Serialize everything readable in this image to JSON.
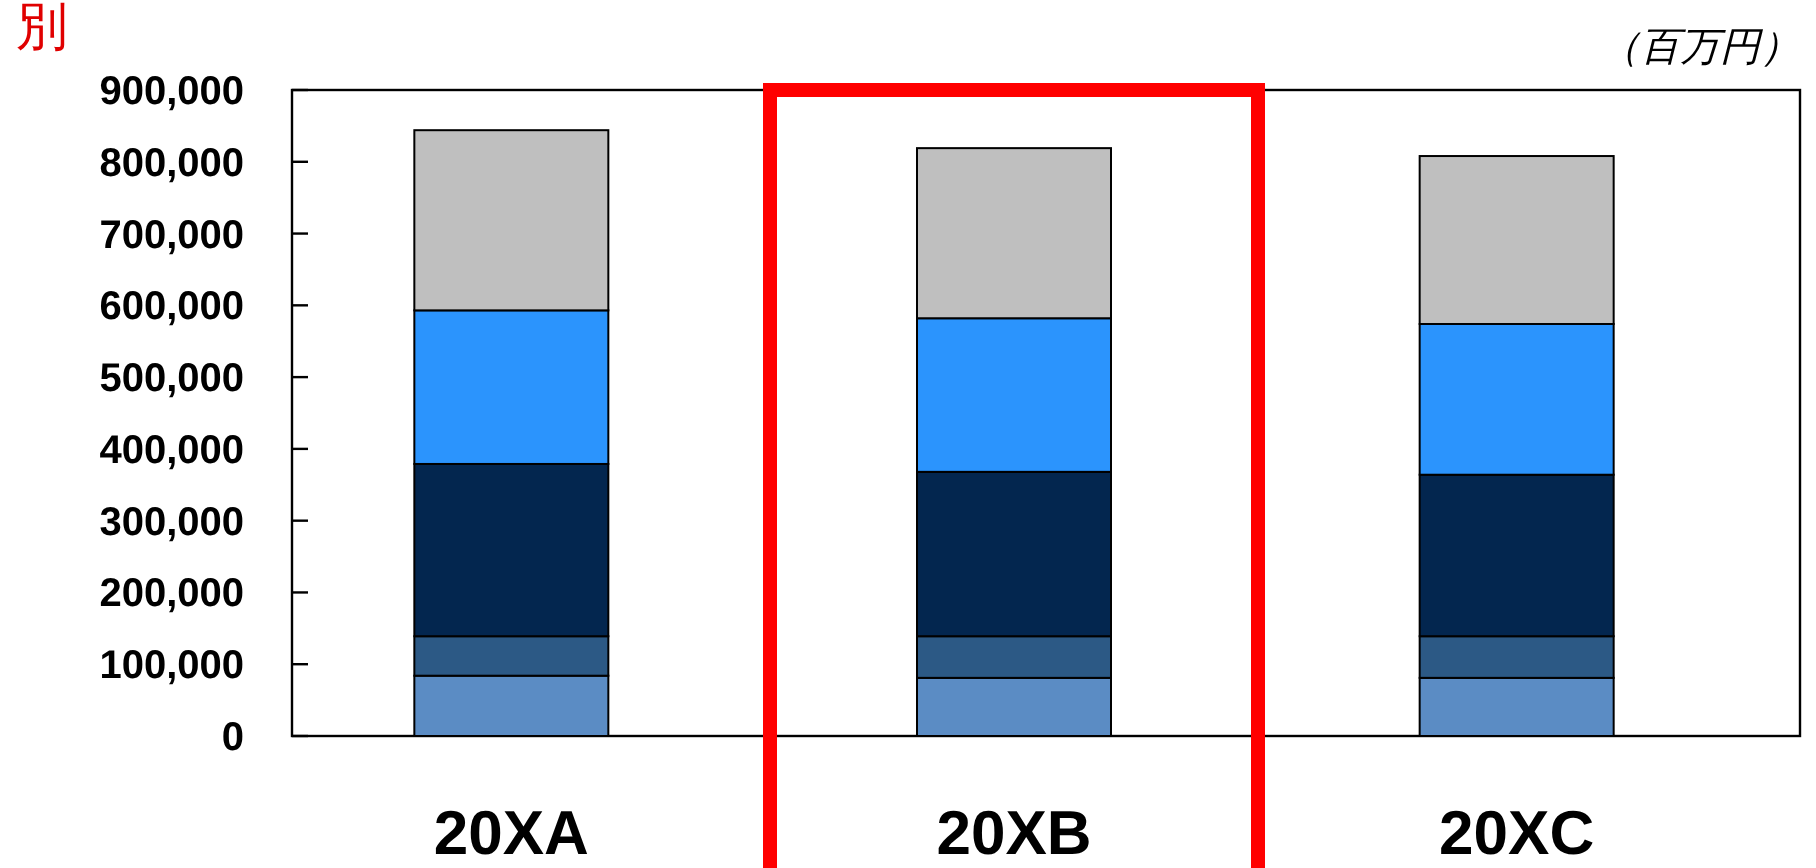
{
  "chart_data": {
    "type": "bar",
    "title": "別",
    "ylabel": "（百万円）",
    "stacked": true,
    "categories": [
      "20XA",
      "20XB",
      "20XC"
    ],
    "series": [
      {
        "color": "#5b8cc4",
        "values": [
          84000,
          81000,
          81000
        ]
      },
      {
        "color": "#2c5985",
        "values": [
          55000,
          58000,
          58000
        ]
      },
      {
        "color": "#03264f",
        "values": [
          240000,
          229000,
          225000
        ]
      },
      {
        "color": "#2b94fd",
        "values": [
          214000,
          214000,
          210000
        ]
      },
      {
        "color": "#bfbfbf",
        "values": [
          251000,
          237000,
          234000
        ]
      }
    ],
    "ylim": [
      0,
      900000
    ],
    "yticks": [
      {
        "value": 0,
        "label": "0"
      },
      {
        "value": 100000,
        "label": "100,000"
      },
      {
        "value": 200000,
        "label": "200,000"
      },
      {
        "value": 300000,
        "label": "300,000"
      },
      {
        "value": 400000,
        "label": "400,000"
      },
      {
        "value": 500000,
        "label": "500,000"
      },
      {
        "value": 600000,
        "label": "600,000"
      },
      {
        "value": 700000,
        "label": "700,000"
      },
      {
        "value": 800000,
        "label": "800,000"
      },
      {
        "value": 900000,
        "label": "900,000"
      }
    ],
    "grid": false
  }
}
